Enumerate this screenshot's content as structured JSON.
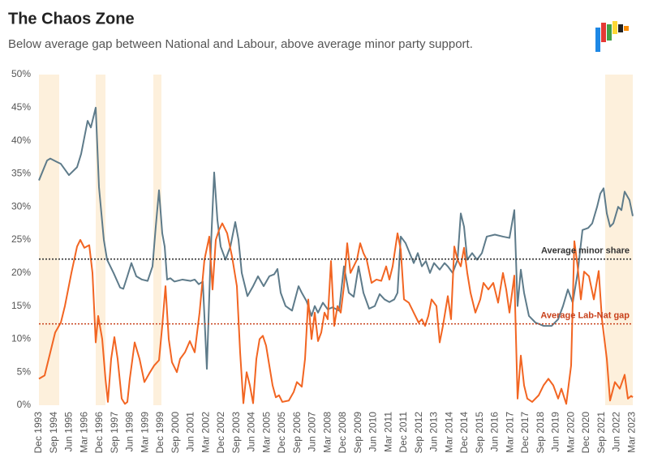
{
  "chart_data": {
    "type": "line",
    "title": "The Chaos Zone",
    "subtitle": "Below average gap between National and Labour, above average minor party support.",
    "xlim": [
      1993.92,
      2023.2
    ],
    "ylim": [
      0,
      50
    ],
    "yticks": [
      {
        "value": 0,
        "label": "0%"
      },
      {
        "value": 5,
        "label": "5%"
      },
      {
        "value": 10,
        "label": "10%"
      },
      {
        "value": 15,
        "label": "15%"
      },
      {
        "value": 20,
        "label": "20%"
      },
      {
        "value": 25,
        "label": "25%"
      },
      {
        "value": 30,
        "label": "30%"
      },
      {
        "value": 35,
        "label": "35%"
      },
      {
        "value": 40,
        "label": "40%"
      },
      {
        "value": 45,
        "label": "45%"
      },
      {
        "value": 50,
        "label": "50%"
      }
    ],
    "xticks": [
      {
        "value": 1993.92,
        "label": "Dec 1993"
      },
      {
        "value": 1994.67,
        "label": "Sep 1994"
      },
      {
        "value": 1995.42,
        "label": "Jun 1995"
      },
      {
        "value": 1996.17,
        "label": "Mar 1996"
      },
      {
        "value": 1996.92,
        "label": "Dec 1996"
      },
      {
        "value": 1997.67,
        "label": "Sep 1997"
      },
      {
        "value": 1998.42,
        "label": "Jun 1998"
      },
      {
        "value": 1999.17,
        "label": "Mar 1999"
      },
      {
        "value": 1999.92,
        "label": "Dec 1999"
      },
      {
        "value": 2000.67,
        "label": "Sep 2000"
      },
      {
        "value": 2001.42,
        "label": "Jun 2001"
      },
      {
        "value": 2002.17,
        "label": "Mar 2002"
      },
      {
        "value": 2002.92,
        "label": "Dec 2002"
      },
      {
        "value": 2003.67,
        "label": "Sep 2003"
      },
      {
        "value": 2004.42,
        "label": "Jun 2004"
      },
      {
        "value": 2005.17,
        "label": "Mar 2005"
      },
      {
        "value": 2005.92,
        "label": "Dec 2005"
      },
      {
        "value": 2006.67,
        "label": "Sep 2006"
      },
      {
        "value": 2007.42,
        "label": "Jun 2007"
      },
      {
        "value": 2008.17,
        "label": "Mar 2008"
      },
      {
        "value": 2008.92,
        "label": "Dec 2008"
      },
      {
        "value": 2009.67,
        "label": "Sep 2009"
      },
      {
        "value": 2010.42,
        "label": "Jun 2010"
      },
      {
        "value": 2011.17,
        "label": "Mar 2011"
      },
      {
        "value": 2011.92,
        "label": "Dec 2011"
      },
      {
        "value": 2012.67,
        "label": "Sep 2012"
      },
      {
        "value": 2013.42,
        "label": "Jun 2013"
      },
      {
        "value": 2014.17,
        "label": "Mar 2014"
      },
      {
        "value": 2014.92,
        "label": "Dec 2014"
      },
      {
        "value": 2015.67,
        "label": "Sep 2015"
      },
      {
        "value": 2016.42,
        "label": "Jun 2016"
      },
      {
        "value": 2017.17,
        "label": "Mar 2017"
      },
      {
        "value": 2017.92,
        "label": "Dec 2017"
      },
      {
        "value": 2018.67,
        "label": "Sep 2018"
      },
      {
        "value": 2019.42,
        "label": "Jun 2019"
      },
      {
        "value": 2020.17,
        "label": "Mar 2020"
      },
      {
        "value": 2020.92,
        "label": "Dec 2020"
      },
      {
        "value": 2021.67,
        "label": "Sep 2021"
      },
      {
        "value": 2022.42,
        "label": "Jun 2022"
      },
      {
        "value": 2023.17,
        "label": "Mar 2023"
      }
    ],
    "highlight_periods": [
      [
        1993.92,
        1994.92
      ],
      [
        1996.72,
        1997.2
      ],
      [
        1999.56,
        1999.96
      ],
      [
        2021.84,
        2023.2
      ]
    ],
    "highlight_color": "#fdf0dc",
    "reference_lines": [
      {
        "label": "Average minor share",
        "value": 22.1,
        "color": "#333333"
      },
      {
        "label": "Average Lab-Nat gap",
        "value": 12.3,
        "color": "#c8401a"
      }
    ],
    "series": [
      {
        "color": "#5e7b8a",
        "x": [
          1993.92,
          1994.32,
          1994.48,
          1994.8,
          1995.0,
          1995.4,
          1995.8,
          1996.0,
          1996.32,
          1996.48,
          1996.64,
          1996.72,
          1996.88,
          1997.12,
          1997.28,
          1997.6,
          1997.92,
          1998.08,
          1998.28,
          1998.48,
          1998.72,
          1999.0,
          1999.28,
          1999.52,
          1999.68,
          1999.84,
          2000.0,
          2000.12,
          2000.24,
          2000.4,
          2000.6,
          2001.0,
          2001.4,
          2001.6,
          2001.8,
          2002.0,
          2002.2,
          2002.4,
          2002.56,
          2002.72,
          2002.88,
          2003.12,
          2003.36,
          2003.6,
          2003.76,
          2003.92,
          2004.2,
          2004.48,
          2004.72,
          2005.0,
          2005.28,
          2005.52,
          2005.68,
          2005.84,
          2006.08,
          2006.4,
          2006.72,
          2006.88,
          2007.12,
          2007.36,
          2007.52,
          2007.68,
          2007.92,
          2008.16,
          2008.4,
          2008.72,
          2008.96,
          2009.2,
          2009.44,
          2009.68,
          2009.92,
          2010.2,
          2010.48,
          2010.72,
          2010.96,
          2011.2,
          2011.44,
          2011.6,
          2011.76,
          2012.0,
          2012.2,
          2012.4,
          2012.6,
          2012.8,
          2013.0,
          2013.2,
          2013.4,
          2013.68,
          2013.92,
          2014.08,
          2014.32,
          2014.56,
          2014.72,
          2014.88,
          2015.04,
          2015.28,
          2015.52,
          2015.76,
          2016.0,
          2016.4,
          2016.8,
          2017.12,
          2017.36,
          2017.52,
          2017.68,
          2017.84,
          2018.08,
          2018.4,
          2018.8,
          2019.2,
          2019.52,
          2019.76,
          2020.0,
          2020.24,
          2020.48,
          2020.72,
          2021.0,
          2021.2,
          2021.44,
          2021.6,
          2021.76,
          2021.92,
          2022.08,
          2022.24,
          2022.48,
          2022.64,
          2022.8,
          2023.04,
          2023.2
        ],
        "values": [
          34,
          37,
          37.3,
          36.8,
          36.5,
          34.8,
          36,
          38,
          43,
          42,
          44,
          45,
          33,
          25,
          22,
          20,
          17.8,
          17.6,
          19.5,
          21.5,
          19.5,
          19,
          18.8,
          21,
          27,
          32.5,
          26,
          24,
          19,
          19.2,
          18.7,
          19,
          18.8,
          19,
          18.3,
          18.7,
          5.5,
          24,
          35.2,
          28,
          24,
          22,
          24,
          27.7,
          25,
          20,
          16.5,
          18,
          19.5,
          18,
          19.5,
          19.8,
          20.6,
          17,
          15,
          14.3,
          18,
          17,
          15.7,
          13.5,
          15,
          14,
          15.5,
          14.5,
          14.8,
          14.3,
          21,
          17,
          16.4,
          21,
          17,
          14.6,
          15,
          16.8,
          16,
          15.6,
          16,
          17,
          25.5,
          24.5,
          23,
          21.5,
          23,
          21,
          21.8,
          20,
          21.5,
          20.5,
          21.5,
          21,
          20,
          22,
          29,
          27,
          22,
          23,
          22,
          23,
          25.5,
          25.8,
          25.5,
          25.3,
          29.5,
          15,
          20.5,
          17,
          13.5,
          12.5,
          12,
          12,
          13,
          15,
          17.5,
          15.5,
          20,
          26.5,
          26.8,
          27.5,
          30,
          32,
          32.8,
          29,
          27,
          27.5,
          30,
          29.5,
          32.3,
          31,
          28.6
        ]
      },
      {
        "color": "#f26522",
        "x": [
          1993.92,
          1994.2,
          1994.48,
          1994.72,
          1995.0,
          1995.2,
          1995.52,
          1995.8,
          1995.96,
          1996.16,
          1996.4,
          1996.56,
          1996.72,
          1996.84,
          1997.04,
          1997.2,
          1997.32,
          1997.48,
          1997.64,
          1997.8,
          1998.0,
          1998.16,
          1998.28,
          1998.4,
          1998.64,
          1998.88,
          1999.12,
          1999.36,
          1999.6,
          1999.84,
          2000.0,
          2000.16,
          2000.32,
          2000.48,
          2000.72,
          2000.88,
          2001.12,
          2001.36,
          2001.6,
          2001.84,
          2002.08,
          2002.32,
          2002.48,
          2002.64,
          2002.8,
          2002.96,
          2003.2,
          2003.44,
          2003.68,
          2003.84,
          2004.0,
          2004.16,
          2004.32,
          2004.48,
          2004.64,
          2004.8,
          2004.96,
          2005.12,
          2005.28,
          2005.44,
          2005.6,
          2005.76,
          2005.92,
          2006.24,
          2006.48,
          2006.64,
          2006.88,
          2007.04,
          2007.2,
          2007.36,
          2007.52,
          2007.68,
          2007.84,
          2008.0,
          2008.16,
          2008.32,
          2008.48,
          2008.64,
          2008.8,
          2008.96,
          2009.12,
          2009.28,
          2009.44,
          2009.6,
          2009.76,
          2009.92,
          2010.08,
          2010.32,
          2010.56,
          2010.8,
          2011.04,
          2011.2,
          2011.36,
          2011.6,
          2011.76,
          2011.92,
          2012.16,
          2012.4,
          2012.64,
          2012.8,
          2012.96,
          2013.12,
          2013.28,
          2013.52,
          2013.68,
          2013.84,
          2014.08,
          2014.24,
          2014.4,
          2014.56,
          2014.72,
          2014.88,
          2015.04,
          2015.2,
          2015.44,
          2015.68,
          2015.84,
          2016.08,
          2016.32,
          2016.56,
          2016.8,
          2016.96,
          2017.12,
          2017.36,
          2017.52,
          2017.68,
          2017.84,
          2018.0,
          2018.24,
          2018.56,
          2018.8,
          2019.04,
          2019.28,
          2019.52,
          2019.68,
          2019.92,
          2020.16,
          2020.32,
          2020.48,
          2020.64,
          2020.8,
          2021.04,
          2021.28,
          2021.52,
          2021.68,
          2021.92,
          2022.08,
          2022.32,
          2022.56,
          2022.8,
          2022.96,
          2023.12,
          2023.2
        ],
        "values": [
          4,
          4.5,
          8,
          11,
          12.5,
          15,
          20,
          24,
          25,
          23.8,
          24.2,
          20,
          9.5,
          13.5,
          10,
          4,
          0.5,
          7,
          10.3,
          7,
          1,
          0.2,
          0.5,
          4,
          9.5,
          7,
          3.5,
          4.8,
          6,
          6.8,
          12,
          18,
          10,
          6.5,
          5,
          7,
          8,
          9.7,
          8,
          14,
          22,
          25.5,
          17.5,
          25,
          26.5,
          27.5,
          26,
          22.5,
          18,
          8,
          0.3,
          5,
          3,
          0.3,
          7,
          10,
          10.5,
          9,
          6,
          3,
          1.2,
          1.5,
          0.5,
          0.7,
          2,
          3.5,
          2.8,
          7,
          16,
          10,
          14,
          9.7,
          11,
          14,
          13,
          21.8,
          12,
          15,
          14,
          18,
          24.5,
          20,
          21,
          22,
          24.5,
          23,
          22,
          18.5,
          19,
          18.8,
          21,
          19,
          21,
          26,
          23.5,
          16,
          15.5,
          14,
          12.5,
          13,
          12,
          13.5,
          16,
          15,
          9.5,
          12,
          16.5,
          13,
          24,
          22,
          21,
          23.8,
          20,
          17,
          14,
          16,
          18.5,
          17.5,
          18.5,
          15.5,
          20,
          17.5,
          14,
          19.6,
          1,
          7.5,
          3,
          1,
          0.5,
          1.5,
          3,
          4,
          3,
          1,
          2.5,
          0.2,
          6,
          24.8,
          21,
          16,
          20.2,
          19.5,
          16,
          20.3,
          13,
          7,
          0.7,
          3.5,
          2.5,
          4.6,
          1,
          1.4,
          1.2
        ]
      }
    ]
  }
}
